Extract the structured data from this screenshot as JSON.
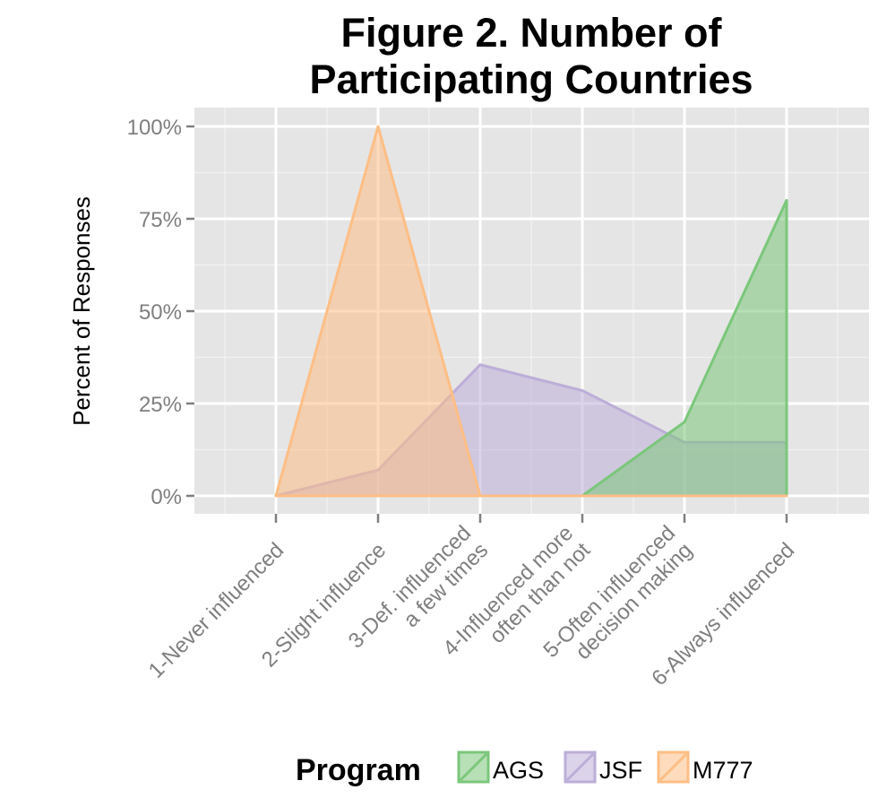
{
  "chart_data": {
    "type": "area",
    "title_lines": [
      "Figure 2. Number of",
      "Participating Countries"
    ],
    "xlabel": "",
    "ylabel": "Percent of Responses",
    "categories": [
      [
        "1-Never influenced"
      ],
      [
        "2-Slight influence"
      ],
      [
        "3-Def. influenced",
        "a few times"
      ],
      [
        "4-Influenced more",
        "often than not"
      ],
      [
        "5-Often influenced",
        "decision making"
      ],
      [
        "6-Always influenced"
      ]
    ],
    "yticks": [
      "0%",
      "25%",
      "50%",
      "75%",
      "100%"
    ],
    "ylim": [
      0,
      1
    ],
    "grid": true,
    "legend": {
      "title": "Program",
      "position": "bottom"
    },
    "series": [
      {
        "name": "JSF",
        "values": [
          0,
          0.07,
          0.355,
          0.285,
          0.145,
          0.145
        ],
        "color": "#bcaed8"
      },
      {
        "name": "AGS",
        "values": [
          0,
          0,
          0,
          0,
          0.2,
          0.8
        ],
        "color": "#7bc77b"
      },
      {
        "name": "M777",
        "values": [
          0,
          1.0,
          0,
          0,
          0,
          0
        ],
        "color": "#fdbe85"
      }
    ],
    "legend_order": [
      "AGS",
      "JSF",
      "M777"
    ]
  }
}
